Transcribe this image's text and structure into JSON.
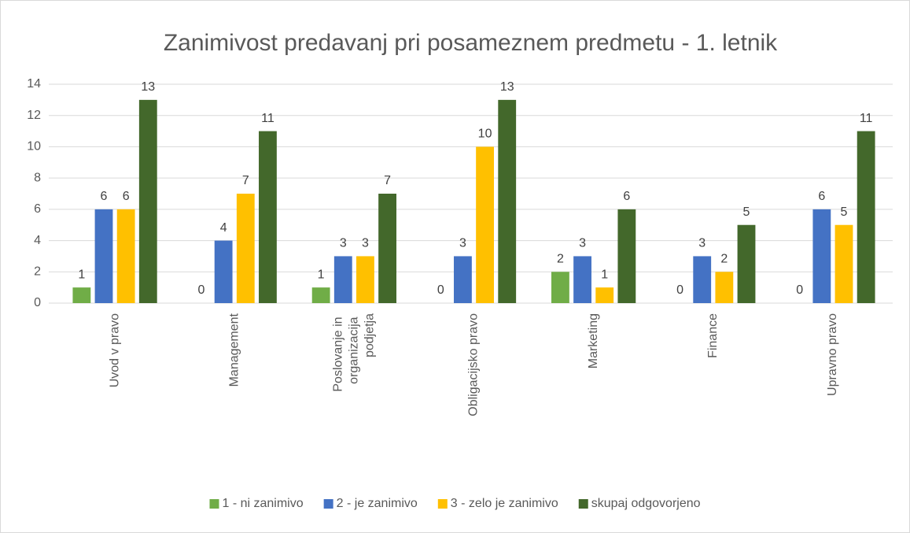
{
  "chart_data": {
    "type": "bar",
    "title": "Zanimivost predavanj pri posameznem predmetu - 1. letnik",
    "categories": [
      "Uvod v pravo",
      "Management",
      "Poslovanje in organizacija podjetja",
      "Obligacijsko pravo",
      "Marketing",
      "Finance",
      "Upravno pravo"
    ],
    "series": [
      {
        "name": "1 - ni zanimivo",
        "color": "#70ad47",
        "values": [
          1,
          0,
          1,
          0,
          2,
          0,
          0
        ]
      },
      {
        "name": "2 - je zanimivo",
        "color": "#4472c4",
        "values": [
          6,
          4,
          3,
          3,
          3,
          3,
          6
        ]
      },
      {
        "name": "3 - zelo je zanimivo",
        "color": "#ffc000",
        "values": [
          6,
          7,
          3,
          10,
          1,
          2,
          5
        ]
      },
      {
        "name": "skupaj odgovorjeno",
        "color": "#43682b",
        "values": [
          13,
          11,
          7,
          13,
          6,
          5,
          11
        ]
      }
    ],
    "ylim": [
      0,
      14
    ],
    "yticks": [
      0,
      2,
      4,
      6,
      8,
      10,
      12,
      14
    ],
    "grid": true,
    "legend": "bottom"
  }
}
